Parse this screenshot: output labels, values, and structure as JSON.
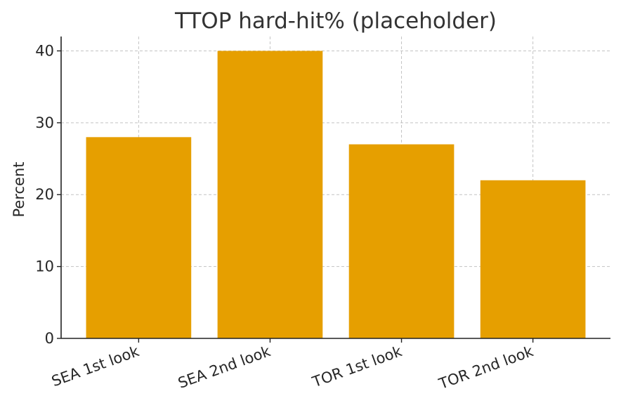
{
  "chart_data": {
    "type": "bar",
    "title": "TTOP hard-hit% (placeholder)",
    "xlabel": "",
    "ylabel": "Percent",
    "categories": [
      "SEA 1st look",
      "SEA 2nd look",
      "TOR 1st look",
      "TOR 2nd look"
    ],
    "values": [
      28,
      40,
      27,
      22
    ],
    "ylim": [
      0,
      42
    ],
    "yticks": [
      0,
      10,
      20,
      30,
      40
    ],
    "grid": true,
    "bar_color": "#E69F00",
    "legend": null
  }
}
